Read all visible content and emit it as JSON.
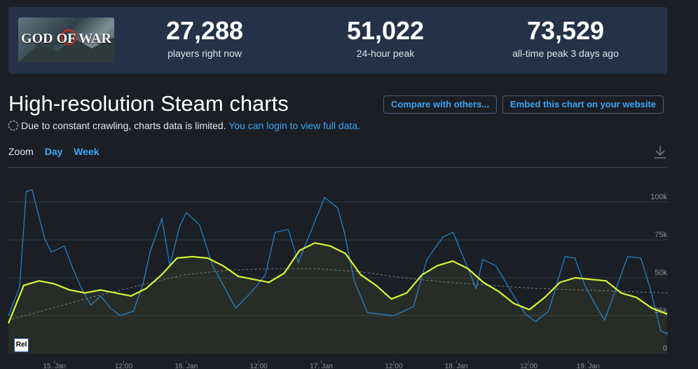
{
  "game": {
    "logo_text": "GOD OF WAR"
  },
  "stats": [
    {
      "value": "27,288",
      "label": "players right now"
    },
    {
      "value": "51,022",
      "label": "24-hour peak"
    },
    {
      "value": "73,529",
      "label": "all-time peak 3 days ago"
    }
  ],
  "page_title": "High-resolution Steam charts",
  "buttons": {
    "compare": "Compare with others...",
    "embed": "Embed this chart on your website"
  },
  "notice": {
    "text": "Due to constant crawling, charts data is limited.",
    "link": "You can login to view full data."
  },
  "zoom": {
    "label": "Zoom",
    "day": "Day",
    "week": "Week"
  },
  "icons": {
    "download": "download-icon",
    "loading": "dashed-circle-icon"
  },
  "colors": {
    "accent": "#3ba6f2",
    "raw_line": "#1f8ad6",
    "smooth_line": "#d8f533",
    "trend_line": "#7a8088"
  },
  "rel_badge": "Rel",
  "chart_data": {
    "type": "line",
    "x_tick_labels": [
      "15. Jan",
      "12:00",
      "16. Jan",
      "12:00",
      "17. Jan",
      "12:00",
      "18. Jan",
      "12:00",
      "19. Jan"
    ],
    "y_tick_labels": [
      "0",
      "25k",
      "50k",
      "75k",
      "100k"
    ],
    "ylim": [
      0,
      110000
    ],
    "grid": true,
    "series": [
      {
        "name": "players",
        "values": [
          25000,
          44000,
          107000,
          108000,
          76000,
          67000,
          69000,
          71000,
          57000,
          44000,
          32000,
          38000,
          30000,
          25000,
          28000,
          47000,
          67000,
          89000,
          58000,
          84000,
          93000,
          85000,
          58000,
          30000,
          41000,
          52000,
          80000,
          82000,
          60000,
          103000,
          96000,
          80000,
          48000,
          27000,
          25000,
          31000,
          62000,
          77000,
          80000,
          43000,
          62000,
          58000,
          36000,
          26000,
          21000,
          28000,
          64000,
          63000,
          45000,
          33000,
          22000,
          34000,
          64000,
          63000,
          42000,
          15000,
          13000,
          14000
        ],
        "x_fraction": [
          0,
          0.017,
          0.027,
          0.036,
          0.055,
          0.065,
          0.075,
          0.085,
          0.097,
          0.11,
          0.125,
          0.14,
          0.155,
          0.17,
          0.19,
          0.205,
          0.215,
          0.233,
          0.245,
          0.26,
          0.27,
          0.29,
          0.31,
          0.345,
          0.37,
          0.39,
          0.405,
          0.425,
          0.44,
          0.48,
          0.5,
          0.51,
          0.525,
          0.545,
          0.585,
          0.615,
          0.635,
          0.66,
          0.675,
          0.71,
          0.72,
          0.74,
          0.77,
          0.785,
          0.8,
          0.82,
          0.845,
          0.86,
          0.875,
          0.89,
          0.905,
          0.915,
          0.94,
          0.96,
          0.975,
          0.99,
          1.0,
          1.0
        ],
        "color": "#1f8ad6"
      },
      {
        "name": "average",
        "values": [
          20000,
          45000,
          48000,
          46000,
          42000,
          40000,
          42000,
          40000,
          38000,
          43000,
          52000,
          63000,
          64000,
          63000,
          58000,
          51000,
          49000,
          47000,
          53000,
          68000,
          73000,
          71000,
          66000,
          52000,
          45000,
          36000,
          40000,
          52000,
          58000,
          61000,
          56000,
          47000,
          41000,
          33000,
          29000,
          37000,
          47000,
          50000,
          49000,
          48000,
          40000,
          37000,
          30000,
          26000
        ],
        "color": "#d8f533"
      },
      {
        "name": "trend",
        "values": [
          22000,
          30000,
          38000,
          45000,
          52000,
          55000,
          56000,
          56000,
          54000,
          50000,
          47000,
          45000,
          43000,
          42000,
          41000,
          40000
        ],
        "color": "#7a8088"
      }
    ]
  }
}
